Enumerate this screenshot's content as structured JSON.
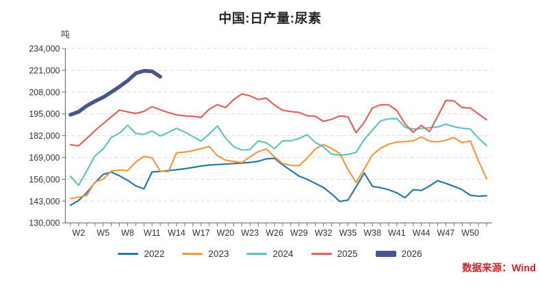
{
  "title": "中国:日产量:尿素",
  "unit_label": "吨",
  "source_label": "数据来源：Wind",
  "colors": {
    "background": "#ffffff",
    "axis": "#6e6e6e",
    "gridline": "#d8d8d8",
    "tick_text": "#333333",
    "title_text": "#262626",
    "source_text": "#d22424"
  },
  "chart_data": {
    "type": "line",
    "title": "中国:日产量:尿素",
    "xlabel": "",
    "ylabel": "吨",
    "ylim": [
      130000,
      234000
    ],
    "yticks": [
      130000,
      143000,
      156000,
      169000,
      182000,
      195000,
      208000,
      221000,
      234000
    ],
    "grid": "horizontal-dashed",
    "legend_position": "bottom",
    "x_unit": "week-of-year",
    "weeks": [
      1,
      2,
      3,
      4,
      5,
      6,
      7,
      8,
      9,
      10,
      11,
      12,
      13,
      14,
      15,
      16,
      17,
      18,
      19,
      20,
      21,
      22,
      23,
      24,
      25,
      26,
      27,
      28,
      29,
      30,
      31,
      32,
      33,
      34,
      35,
      36,
      37,
      38,
      39,
      40,
      41,
      42,
      43,
      44,
      45,
      46,
      47,
      48,
      49,
      50,
      51,
      52
    ],
    "xtick_weeks": [
      2,
      5,
      8,
      11,
      14,
      17,
      20,
      23,
      26,
      29,
      32,
      35,
      38,
      41,
      44,
      47,
      50
    ],
    "xtick_labels": [
      "W2",
      "W5",
      "W8",
      "W11",
      "W14",
      "W17",
      "W20",
      "W23",
      "W26",
      "W29",
      "W32",
      "W35",
      "W38",
      "W41",
      "W44",
      "W47",
      "W50"
    ],
    "series": [
      {
        "name": "2022",
        "color": "#2679a1",
        "line_width": 2.2,
        "values": [
          140500,
          143400,
          148000,
          154000,
          158900,
          160300,
          158100,
          155400,
          152100,
          150300,
          160400,
          160700,
          161200,
          161700,
          162300,
          163100,
          163900,
          164500,
          164800,
          165100,
          165400,
          165700,
          166100,
          166700,
          168200,
          168500,
          164600,
          161300,
          157900,
          156000,
          153600,
          151100,
          147300,
          142800,
          143600,
          151500,
          159800,
          151800,
          151000,
          149800,
          147900,
          145000,
          149800,
          149300,
          152000,
          155200,
          153600,
          151800,
          149800,
          146500,
          145900,
          146200
        ]
      },
      {
        "name": "2023",
        "color": "#f6973b",
        "line_width": 2.2,
        "values": [
          144500,
          145300,
          146400,
          154400,
          156100,
          160900,
          161600,
          161200,
          166300,
          169700,
          168800,
          160900,
          160600,
          171800,
          172200,
          173100,
          174200,
          175600,
          170100,
          167400,
          166700,
          166000,
          169400,
          172500,
          174000,
          169400,
          165400,
          164300,
          164200,
          168500,
          174100,
          176800,
          174400,
          171400,
          162000,
          154000,
          162100,
          170500,
          174500,
          176900,
          178200,
          178500,
          178900,
          181300,
          178800,
          178300,
          179300,
          180900,
          177800,
          178900,
          167000,
          156500
        ]
      },
      {
        "name": "2024",
        "color": "#5fc4bd",
        "line_width": 2.2,
        "values": [
          157800,
          152400,
          161000,
          170000,
          174000,
          181000,
          183500,
          188200,
          183400,
          182800,
          184800,
          181800,
          184000,
          186400,
          184200,
          181500,
          178800,
          183000,
          187800,
          180600,
          175500,
          173400,
          173800,
          178900,
          177800,
          174300,
          178900,
          179000,
          180300,
          182600,
          178000,
          175300,
          171000,
          170400,
          170800,
          172000,
          179700,
          185300,
          190800,
          192100,
          192200,
          187000,
          185900,
          186400,
          186800,
          187200,
          188900,
          187400,
          186500,
          186000,
          180500,
          176100
        ]
      },
      {
        "name": "2025",
        "color": "#e2615e",
        "line_width": 2.2,
        "values": [
          176600,
          176000,
          180400,
          185000,
          189200,
          193200,
          197300,
          196200,
          195300,
          196500,
          199300,
          197500,
          195800,
          194400,
          193800,
          193600,
          192900,
          197800,
          200500,
          198800,
          203500,
          206900,
          205800,
          203600,
          204400,
          200300,
          197200,
          196400,
          195900,
          193900,
          193600,
          190500,
          191800,
          193800,
          193300,
          183800,
          190000,
          198500,
          200400,
          200400,
          197000,
          189000,
          184000,
          188200,
          184500,
          193500,
          203000,
          202800,
          198800,
          198500,
          195000,
          191500
        ]
      },
      {
        "name": "2026",
        "color": "#475593",
        "line_width": 5.5,
        "values": [
          194500,
          196300,
          199800,
          202600,
          204900,
          208000,
          211200,
          214800,
          219200,
          220700,
          220400,
          217200
        ]
      }
    ]
  }
}
